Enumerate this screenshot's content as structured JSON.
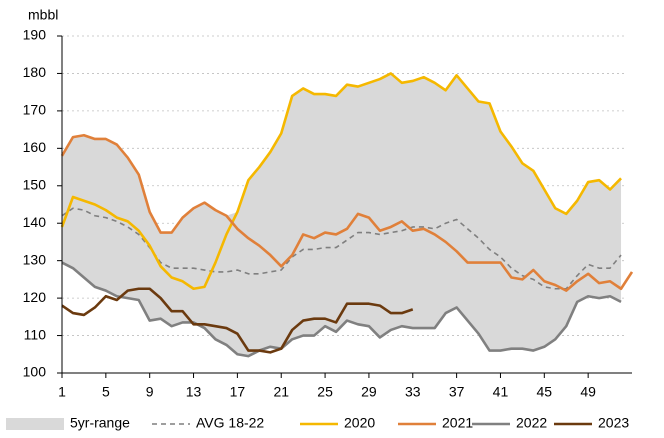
{
  "chart_data": {
    "type": "line",
    "y_label": "mbbl",
    "x": [
      1,
      2,
      3,
      4,
      5,
      6,
      7,
      8,
      9,
      10,
      11,
      12,
      13,
      14,
      15,
      16,
      17,
      18,
      19,
      20,
      21,
      22,
      23,
      24,
      25,
      26,
      27,
      28,
      29,
      30,
      31,
      32,
      33,
      34,
      35,
      36,
      37,
      38,
      39,
      40,
      41,
      42,
      43,
      44,
      45,
      46,
      47,
      48,
      49,
      50,
      51,
      52,
      53
    ],
    "xlim": [
      1,
      53
    ],
    "xticks": [
      1,
      5,
      9,
      13,
      17,
      21,
      25,
      29,
      33,
      37,
      41,
      45,
      49
    ],
    "ylim": [
      100,
      190
    ],
    "yticks": [
      100,
      110,
      120,
      130,
      140,
      150,
      160,
      170,
      180,
      190
    ],
    "grid": true,
    "legend": "bottom",
    "series": [
      {
        "name": "5yr-range",
        "color": "#d9d9d9",
        "type": "range",
        "high": [
          158,
          163,
          163.5,
          162.5,
          162.5,
          161,
          157.5,
          153,
          143,
          137.5,
          137.5,
          141.5,
          144,
          145.5,
          143.5,
          142,
          143,
          151.5,
          155,
          159,
          164,
          174,
          176,
          174.5,
          174.5,
          174,
          177,
          176.5,
          177.5,
          178.5,
          180,
          177.5,
          178,
          179,
          177.5,
          175.5,
          179.5,
          176,
          172.5,
          172,
          164.5,
          160.5,
          156,
          154,
          149,
          144,
          142.5,
          146,
          151,
          151.5,
          149,
          152,
          null
        ],
        "low": [
          129.5,
          128,
          125.5,
          123,
          122,
          120.5,
          120,
          119.5,
          114,
          114.5,
          112.5,
          113.5,
          113.5,
          112,
          109,
          107.5,
          105,
          104.5,
          106,
          107,
          106.5,
          109,
          110,
          110,
          112.5,
          111,
          114,
          113,
          112.5,
          109.5,
          111.5,
          112.5,
          112,
          112,
          112,
          116,
          117.5,
          114,
          110.5,
          106,
          106,
          106.5,
          106.5,
          106,
          107,
          109,
          112.5,
          119,
          120.5,
          120,
          120.5,
          119,
          null
        ]
      },
      {
        "name": "AVG 18-22",
        "color": "#7f7f7f",
        "dash": true,
        "values": [
          142,
          144,
          143.5,
          142,
          141.5,
          140.5,
          139,
          137,
          133.5,
          129.5,
          128,
          128,
          128,
          127.5,
          127,
          127,
          127.5,
          126.5,
          126.5,
          127,
          127.5,
          131,
          133,
          133,
          133.5,
          133.5,
          135.5,
          137.5,
          137.5,
          137,
          137.5,
          138,
          139,
          139,
          138.5,
          140,
          141,
          138.5,
          136,
          133,
          131,
          128,
          126,
          125,
          123,
          122.5,
          122.5,
          126,
          129,
          128,
          128,
          131.5,
          null
        ]
      },
      {
        "name": "2020",
        "color": "#f5b800",
        "values": [
          139,
          147,
          146,
          145,
          143.5,
          141.5,
          140.5,
          138,
          134,
          128.5,
          125.5,
          124.5,
          122.5,
          123,
          129.5,
          137,
          143,
          151.5,
          155,
          159,
          164,
          174,
          176,
          174.5,
          174.5,
          174,
          177,
          176.5,
          177.5,
          178.5,
          180,
          177.5,
          178,
          179,
          177.5,
          175.5,
          179.5,
          176,
          172.5,
          172,
          164.5,
          160.5,
          156,
          154,
          149,
          144,
          142.5,
          146,
          151,
          151.5,
          149,
          152,
          null
        ]
      },
      {
        "name": "2021",
        "color": "#e0803a",
        "values": [
          158,
          163,
          163.5,
          162.5,
          162.5,
          161,
          157.5,
          153,
          143,
          137.5,
          137.5,
          141.5,
          144,
          145.5,
          143.5,
          142,
          138.5,
          136,
          134,
          131.5,
          128.5,
          131.5,
          137,
          136,
          137.5,
          137,
          138.5,
          142.5,
          141.5,
          138,
          139,
          140.5,
          138,
          138.5,
          137,
          135,
          132.5,
          129.5,
          129.5,
          129.5,
          129.5,
          125.5,
          125,
          127.5,
          124.5,
          123.5,
          122,
          124.5,
          126.5,
          124,
          124.5,
          122.5,
          127
        ]
      },
      {
        "name": "2022",
        "color": "#808080",
        "values": [
          129.5,
          128,
          125.5,
          123,
          122,
          120.5,
          120,
          119.5,
          114,
          114.5,
          112.5,
          113.5,
          113.5,
          112,
          109,
          107.5,
          105,
          104.5,
          106,
          107,
          106.5,
          109,
          110,
          110,
          112.5,
          111,
          114,
          113,
          112.5,
          109.5,
          111.5,
          112.5,
          112,
          112,
          112,
          116,
          117.5,
          114,
          110.5,
          106,
          106,
          106.5,
          106.5,
          106,
          107,
          109,
          112.5,
          119,
          120.5,
          120,
          120.5,
          119,
          null
        ]
      },
      {
        "name": "2023",
        "color": "#6b3a0f",
        "values": [
          118,
          116,
          115.5,
          117.5,
          120.5,
          119.5,
          122,
          122.5,
          122.5,
          120,
          116.5,
          116.5,
          113,
          113,
          112.5,
          112,
          110.5,
          106,
          106,
          105.5,
          106.5,
          111.5,
          114,
          114.5,
          114.5,
          113.5,
          118.5,
          118.5,
          118.5,
          118,
          116,
          116,
          117,
          null,
          null,
          null,
          null,
          null,
          null,
          null,
          null,
          null,
          null,
          null,
          null,
          null,
          null,
          null,
          null,
          null,
          null,
          null,
          null
        ]
      }
    ]
  }
}
